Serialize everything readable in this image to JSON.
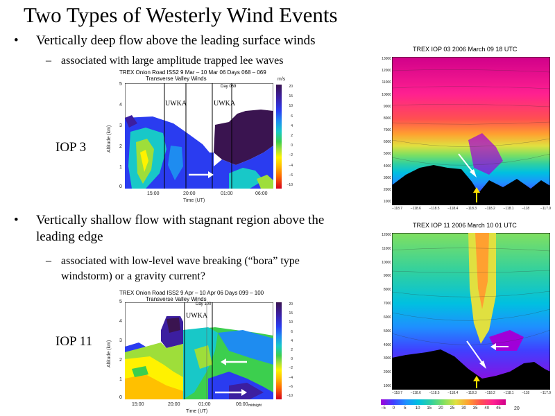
{
  "slide": {
    "title": "Two Types of Westerly Wind Events",
    "bullet1": "Vertically deep flow above the leading surface winds",
    "sub1": "associated with large amplitude trapped lee waves",
    "bullet2_line1": "Vertically shallow flow with stagnant region above the",
    "bullet2_line2": "leading edge",
    "sub2_line1": "associated with low-level wave breaking (“bora” type",
    "sub2_line2": "windstorm) or a gravity current?",
    "iop3_label": "IOP 3",
    "iop11_label": "IOP 11",
    "bullet_glyph": "•",
    "dash_glyph": "–"
  },
  "chart_data": [
    {
      "type": "heatmap",
      "title": "TREX Onion Road ISS2   9 Mar – 10 Mar 06 Days 068 – 069",
      "subtitle": "Transverse Valley Winds",
      "annotation": "Day 069",
      "markers": [
        "UWKA",
        "UWKA"
      ],
      "xlabel": "Time (UT)",
      "ylabel": "Altitude (km)",
      "x_ticks": [
        "15:00",
        "20:00",
        "01:00",
        "06:00"
      ],
      "y_ticks": [
        "0",
        "1",
        "2",
        "3",
        "4",
        "5"
      ],
      "ylim": [
        0,
        5
      ],
      "colorbar_unit": "m/s",
      "colorbar_ticks": [
        "20",
        "15",
        "10",
        "6",
        "4",
        "2",
        "0",
        "−2",
        "−4",
        "−6",
        "−10"
      ]
    },
    {
      "type": "heatmap",
      "title": "TREX IOP 03 2006 March 09 18 UTC",
      "y_ticks": [
        "1000",
        "2000",
        "3000",
        "4000",
        "5000",
        "6000",
        "7000",
        "8000",
        "9000",
        "10000",
        "11000",
        "12000",
        "13000"
      ],
      "x_ticks": [
        "−118.7",
        "−118.6",
        "−118.5",
        "−118.4",
        "−118.3",
        "−118.2",
        "−118.1",
        "−118",
        "−117.9"
      ]
    },
    {
      "type": "heatmap",
      "title": "TREX Onion Road ISS2   9 Apr – 10 Apr 06 Days 099 – 100",
      "subtitle": "Transverse Valley Winds",
      "annotation": "Day 100",
      "markers": [
        "UWKA"
      ],
      "xlabel": "Time (UT)",
      "ylabel": "Altitude (km)",
      "x_ticks": [
        "15:00",
        "20:00",
        "01:00",
        "06:00"
      ],
      "x_note": "midnight",
      "y_ticks": [
        "0",
        "1",
        "2",
        "3",
        "4",
        "5"
      ],
      "ylim": [
        0,
        5
      ],
      "colorbar_unit": "m/s",
      "colorbar_ticks": [
        "20",
        "15",
        "10",
        "6",
        "4",
        "2",
        "0",
        "−2",
        "−4",
        "−6",
        "−10"
      ]
    },
    {
      "type": "heatmap",
      "title": "TREX IOP 11 2006 March 10 01 UTC",
      "y_ticks": [
        "1000",
        "2000",
        "3000",
        "4000",
        "5000",
        "6000",
        "7000",
        "8000",
        "9000",
        "10000",
        "11000",
        "12000"
      ],
      "x_ticks": [
        "−118.7",
        "−118.6",
        "−118.5",
        "−118.4",
        "−118.3",
        "−118.2",
        "−118.1",
        "−118",
        "−117.9"
      ],
      "colorbar_ticks": [
        "−5",
        "0",
        "5",
        "10",
        "15",
        "20",
        "25",
        "30",
        "35",
        "40",
        "45"
      ],
      "colorbar_note": "20"
    }
  ],
  "colors": {
    "colorscale": [
      "#d4001c",
      "#ff6a00",
      "#ffc000",
      "#fff200",
      "#9ede3a",
      "#3ccf4e",
      "#18c8c8",
      "#1e8cf0",
      "#2a3cf0",
      "#3c1ea0",
      "#3a1450"
    ],
    "wrf": [
      "#a000d8",
      "#4040ff",
      "#1e90ff",
      "#00c0e0",
      "#30d0a0",
      "#80e060",
      "#e0e040",
      "#ffa030",
      "#ff5050",
      "#ff2090",
      "#d0008a"
    ]
  }
}
